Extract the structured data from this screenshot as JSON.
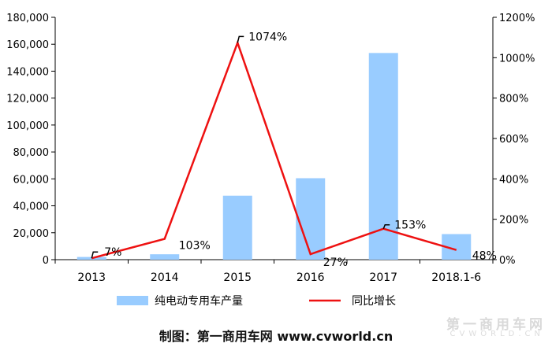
{
  "chart_data": {
    "type": "bar+line",
    "categories": [
      "2013",
      "2014",
      "2015",
      "2016",
      "2017",
      "2018.1-6"
    ],
    "series": [
      {
        "name": "纯电动专用车产量",
        "type": "bar",
        "axis": "left",
        "color": "#99ccff",
        "values": [
          2000,
          4000,
          47500,
          60500,
          153500,
          19000
        ]
      },
      {
        "name": "同比增长",
        "type": "line",
        "axis": "right",
        "color": "#ee1111",
        "values": [
          7,
          103,
          1074,
          27,
          153,
          48
        ],
        "labels": [
          "7%",
          "103%",
          "1074%",
          "27%",
          "153%",
          "48%"
        ]
      }
    ],
    "y_left": {
      "min": 0,
      "max": 180000,
      "step": 20000,
      "ticks": [
        "0",
        "20,000",
        "40,000",
        "60,000",
        "80,000",
        "100,000",
        "120,000",
        "140,000",
        "160,000",
        "180,000"
      ]
    },
    "y_right": {
      "min": 0,
      "max": 1200,
      "step": 200,
      "ticks": [
        "0%",
        "200%",
        "400%",
        "600%",
        "800%",
        "1000%",
        "1200%"
      ]
    },
    "legend_position": "bottom",
    "grid": false
  },
  "source_text": "制图：第一商用车网 www.cvworld.cn",
  "watermark": {
    "main": "第一商用车网",
    "sub": "CVWORLD.CN"
  }
}
